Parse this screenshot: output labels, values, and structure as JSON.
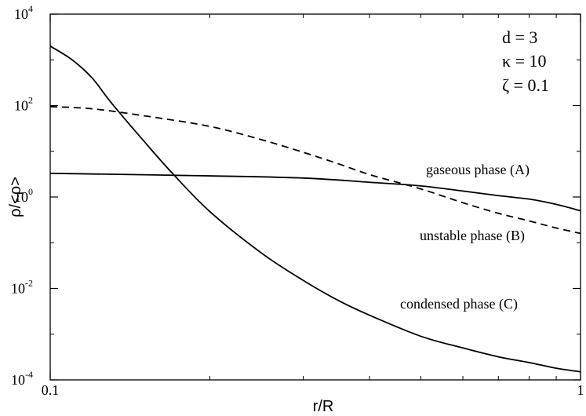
{
  "chart_data": {
    "type": "line",
    "xscale": "log",
    "yscale": "log",
    "xlim": [
      0.1,
      1
    ],
    "ylim": [
      0.0001,
      10000
    ],
    "xlabel": "r/R",
    "ylabel": "ρ/<ρ>",
    "x_ticks": [
      {
        "value": 0.1,
        "label": "0.1"
      },
      {
        "value": 1,
        "label": "1"
      }
    ],
    "y_ticks": [
      {
        "value": 0.0001,
        "base": "10",
        "exp": "-4"
      },
      {
        "value": 0.01,
        "base": "10",
        "exp": "-2"
      },
      {
        "value": 1,
        "base": "10",
        "exp": "0"
      },
      {
        "value": 100,
        "base": "10",
        "exp": "2"
      },
      {
        "value": 10000,
        "base": "10",
        "exp": "4"
      }
    ],
    "parameters": [
      "d = 3",
      "κ = 10",
      "ζ = 0.1"
    ],
    "series": [
      {
        "name": "gaseous phase (A)",
        "style": "solid",
        "x": [
          0.1,
          0.2,
          0.3,
          0.4,
          0.5,
          0.6,
          0.7,
          0.8,
          0.9,
          1.0
        ],
        "y": [
          3.3,
          2.9,
          2.6,
          2.1,
          1.75,
          1.35,
          1.07,
          0.9,
          0.69,
          0.5
        ]
      },
      {
        "name": "unstable phase (B)",
        "style": "dashed",
        "x": [
          0.1,
          0.12,
          0.15,
          0.2,
          0.25,
          0.3,
          0.35,
          0.4,
          0.5,
          0.6,
          0.7,
          0.8,
          0.9,
          1.0
        ],
        "y": [
          95,
          85,
          60,
          35,
          18,
          9.5,
          5.3,
          3.1,
          1.5,
          0.75,
          0.44,
          0.3,
          0.21,
          0.16
        ]
      },
      {
        "name": "condensed phase (C)",
        "style": "solid",
        "x": [
          0.1,
          0.11,
          0.12,
          0.13,
          0.15,
          0.17,
          0.2,
          0.25,
          0.3,
          0.35,
          0.4,
          0.5,
          0.6,
          0.7,
          0.8,
          0.9,
          1.0
        ],
        "y": [
          2000,
          1000,
          400,
          120,
          17,
          3.3,
          0.48,
          0.06,
          0.015,
          0.0054,
          0.0026,
          0.0009,
          0.0005,
          0.00032,
          0.00024,
          0.00018,
          0.00015
        ]
      }
    ]
  },
  "annotations": {
    "gaseous": "gaseous phase (A)",
    "unstable": "unstable phase (B)",
    "condensed": "condensed phase (C)"
  }
}
